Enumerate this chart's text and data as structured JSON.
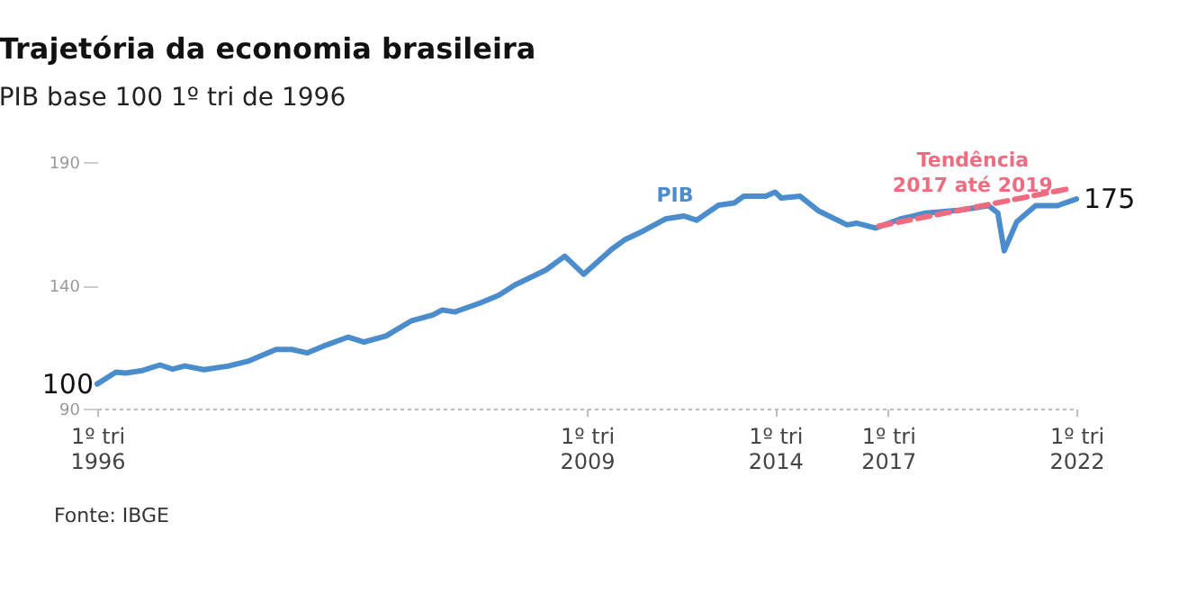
{
  "chart_data": {
    "type": "line",
    "title": "Trajetória da economia brasileira",
    "subtitle": "PIB base 100 1º tri de 1996",
    "xlim": [
      "1996-01",
      "2022-01"
    ],
    "ylim": [
      90,
      190
    ],
    "yticks": [
      90,
      140,
      190
    ],
    "xticks": [
      {
        "value": "1996-01",
        "label": "1º tri\n1996"
      },
      {
        "value": "2009-01",
        "label": "1º tri\n2009"
      },
      {
        "value": "2014-01",
        "label": "1º tri\n2014"
      },
      {
        "value": "2017-01",
        "label": "1º tri\n2017"
      },
      {
        "value": "2022-01",
        "label": "1º tri\n2022"
      }
    ],
    "line_style": "solid",
    "series": [
      {
        "name": "PIB",
        "color": "#4a8ccc",
        "x": [
          "1996-01",
          "1996-07",
          "1996-10",
          "1997-03",
          "1997-09",
          "1998-01",
          "1998-05",
          "1998-11",
          "1999-07",
          "2000-01",
          "2000-10",
          "2001-03",
          "2001-08",
          "2002-01",
          "2002-09",
          "2003-02",
          "2003-09",
          "2004-05",
          "2004-12",
          "2005-03",
          "2005-07",
          "2006-03",
          "2006-09",
          "2007-02",
          "2007-12",
          "2008-06",
          "2008-12",
          "2009-09",
          "2010-01",
          "2010-07",
          "2011-02",
          "2011-08",
          "2011-12",
          "2012-07",
          "2012-12",
          "2013-03",
          "2013-10",
          "2014-01",
          "2014-03",
          "2014-09",
          "2015-03",
          "2015-12",
          "2016-03",
          "2016-09",
          "2017-05",
          "2018-01",
          "2018-12",
          "2019-09",
          "2019-12",
          "2020-02",
          "2020-06",
          "2020-12",
          "2021-07",
          "2022-01"
        ],
        "values": [
          100,
          104.8,
          104.4,
          105.3,
          107.7,
          106,
          107.3,
          105.8,
          107.3,
          109.2,
          114,
          114,
          112.6,
          115.3,
          119,
          117,
          119.4,
          125.5,
          128,
          130,
          129.2,
          132.8,
          136,
          140.1,
          146.2,
          151.8,
          144.5,
          154.7,
          158.4,
          162,
          166.9,
          168.1,
          166.4,
          172.5,
          173.4,
          176.1,
          176.1,
          177.8,
          175.4,
          176.1,
          170.1,
          164.5,
          165.2,
          163.2,
          166.9,
          169.3,
          170.5,
          172.3,
          169.3,
          154,
          165.7,
          172.3,
          172.3,
          175
        ]
      },
      {
        "name": "Tendência\n2017 até 2019",
        "color": "#ee6b80",
        "line_style": "dashed",
        "x": [
          "2016-10",
          "2021-10"
        ],
        "values": [
          164,
          179
        ]
      }
    ],
    "annotations": [
      {
        "text": "100",
        "x": "1996-01",
        "y": 100
      },
      {
        "text": "175",
        "x": "2022-01",
        "y": 175
      },
      "Fonte: IBGE"
    ]
  }
}
